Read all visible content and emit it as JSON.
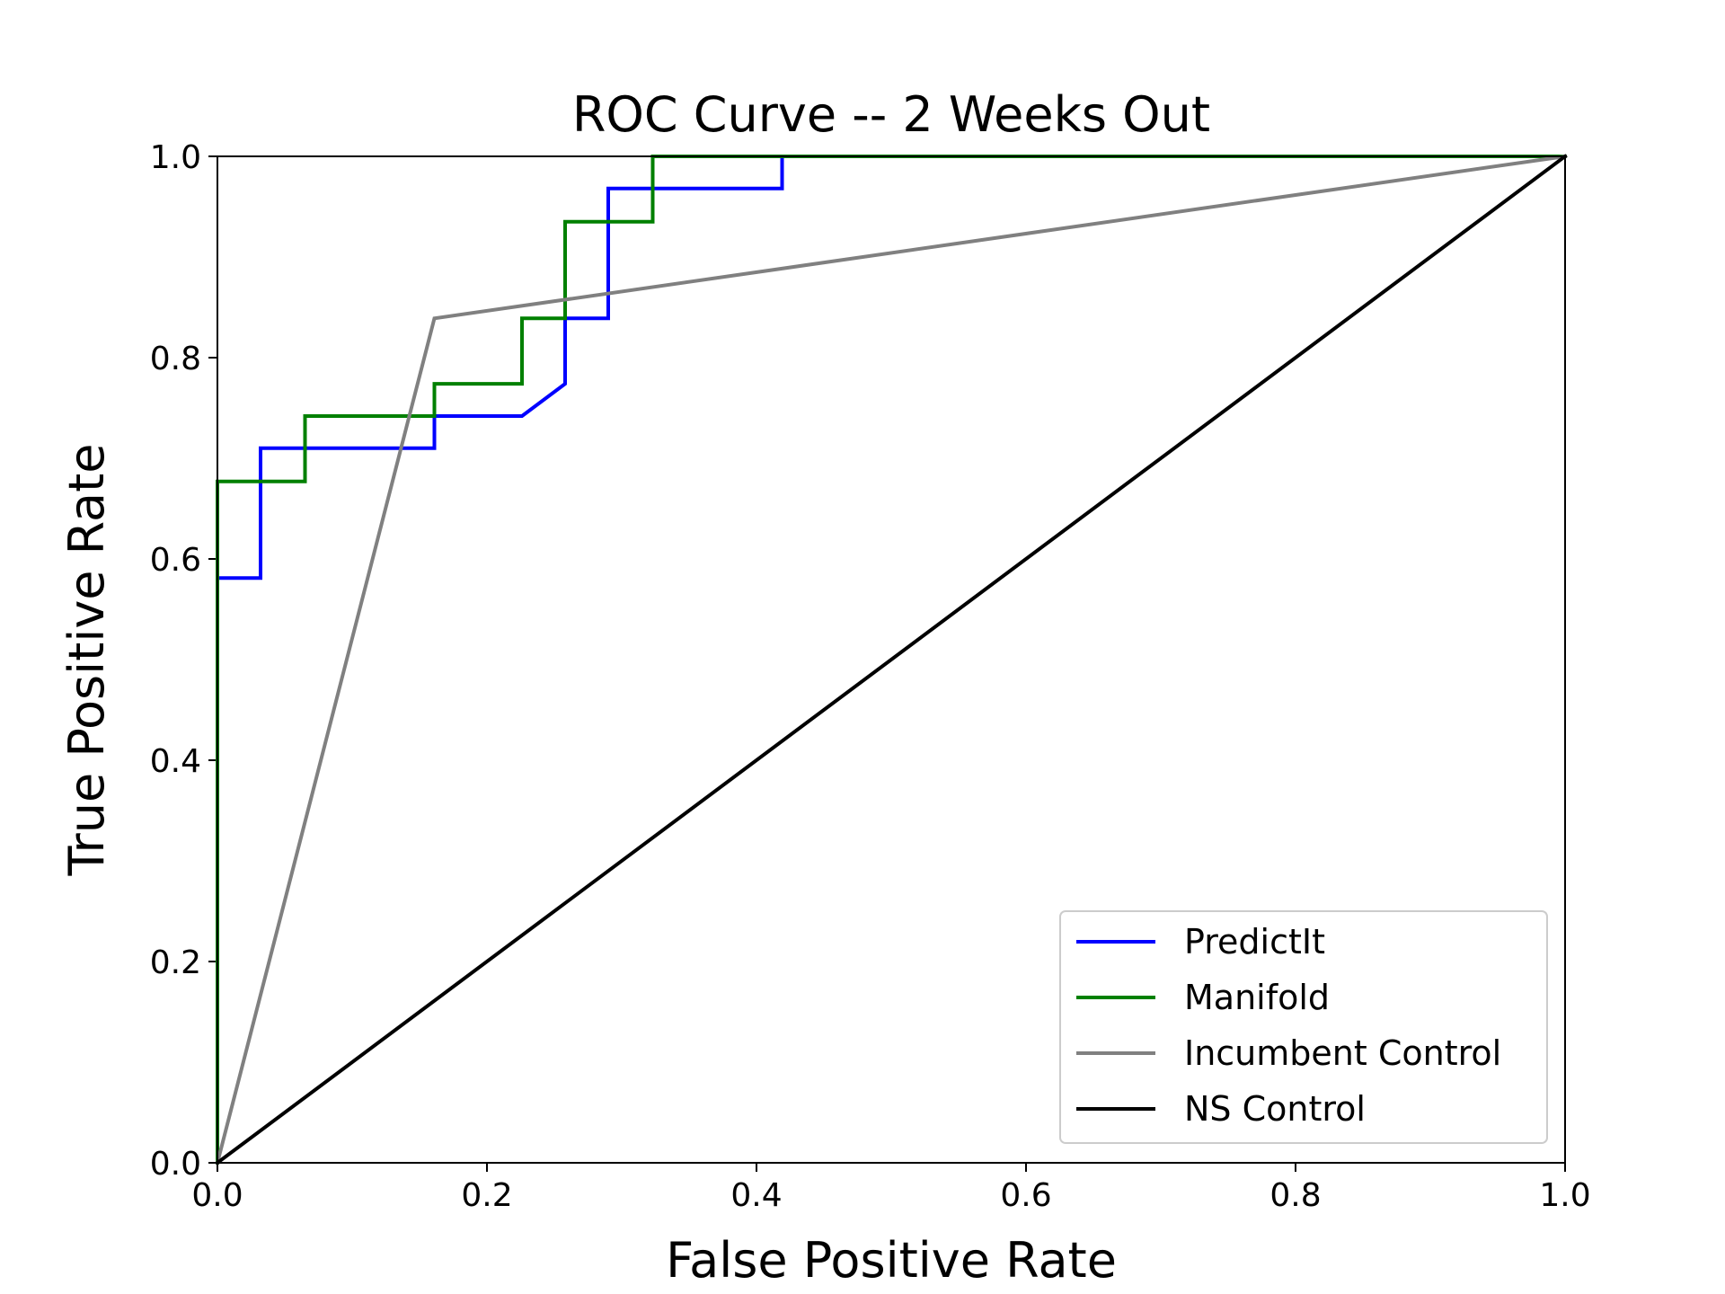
{
  "chart_data": {
    "type": "line",
    "title": "ROC Curve -- 2 Weeks Out",
    "xlabel": "False Positive Rate",
    "ylabel": "True Positive Rate",
    "xlim": [
      0.0,
      1.0
    ],
    "ylim": [
      0.0,
      1.0
    ],
    "xticks": [
      "0.0",
      "0.2",
      "0.4",
      "0.6",
      "0.8",
      "1.0"
    ],
    "yticks": [
      "0.0",
      "0.2",
      "0.4",
      "0.6",
      "0.8",
      "1.0"
    ],
    "grid": false,
    "legend_position": "lower-right",
    "series": [
      {
        "name": "PredictIt",
        "color": "#0000ff",
        "x": [
          0.0,
          0.0,
          0.032,
          0.032,
          0.161,
          0.161,
          0.226,
          0.258,
          0.258,
          0.29,
          0.29,
          0.419,
          0.419,
          1.0
        ],
        "y": [
          0.0,
          0.581,
          0.581,
          0.71,
          0.71,
          0.742,
          0.742,
          0.774,
          0.839,
          0.839,
          0.968,
          0.968,
          1.0,
          1.0
        ]
      },
      {
        "name": "Manifold",
        "color": "#008000",
        "x": [
          0.0,
          0.0,
          0.065,
          0.065,
          0.161,
          0.161,
          0.226,
          0.226,
          0.258,
          0.258,
          0.323,
          0.323,
          1.0
        ],
        "y": [
          0.0,
          0.677,
          0.677,
          0.742,
          0.742,
          0.774,
          0.774,
          0.839,
          0.839,
          0.935,
          0.935,
          1.0,
          1.0
        ]
      },
      {
        "name": "Incumbent Control",
        "color": "#808080",
        "x": [
          0.0,
          0.161,
          1.0
        ],
        "y": [
          0.0,
          0.839,
          1.0
        ]
      },
      {
        "name": "NS Control",
        "color": "#000000",
        "x": [
          0.0,
          1.0
        ],
        "y": [
          0.0,
          1.0
        ]
      }
    ]
  }
}
